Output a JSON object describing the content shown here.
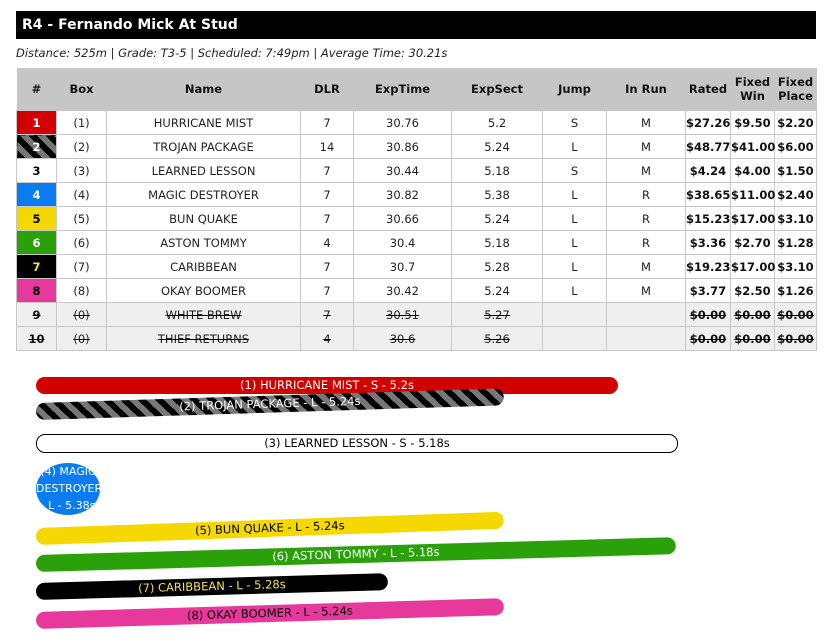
{
  "title": "R4 - Fernando Mick At Stud",
  "subtitle": "Distance: 525m | Grade: T3-5 | Scheduled: 7:49pm | Average Time: 30.21s",
  "headers": [
    "#",
    "Box",
    "Name",
    "DLR",
    "ExpTime",
    "ExpSect",
    "Jump",
    "In Run",
    "Rated",
    "Fixed Win",
    "Fixed Place"
  ],
  "runners": [
    {
      "num": "1",
      "box": "(1)",
      "name": "HURRICANE MIST",
      "dlr": "7",
      "exptime": "30.76",
      "expsect": "5.2",
      "jump": "S",
      "inrun": "M",
      "rated": "$27.26",
      "win": "$9.50",
      "place": "$2.20",
      "color": "#d20000",
      "text": "#fff",
      "bar": "(1) HURRICANE MIST - S - 5.2s"
    },
    {
      "num": "2",
      "box": "(2)",
      "name": "TROJAN PACKAGE",
      "dlr": "14",
      "exptime": "30.86",
      "expsect": "5.24",
      "jump": "L",
      "inrun": "M",
      "rated": "$48.77",
      "win": "$41.00",
      "place": "$6.00",
      "color": "stripes",
      "text": "#fff",
      "bar": "(2) TROJAN PACKAGE - L - 5.24s"
    },
    {
      "num": "3",
      "box": "(3)",
      "name": "LEARNED LESSON",
      "dlr": "7",
      "exptime": "30.44",
      "expsect": "5.18",
      "jump": "S",
      "inrun": "M",
      "rated": "$4.24",
      "win": "$4.00",
      "place": "$1.50",
      "color": "#ffffff",
      "text": "#000",
      "bar": "(3) LEARNED LESSON - S - 5.18s"
    },
    {
      "num": "4",
      "box": "(4)",
      "name": "MAGIC DESTROYER",
      "dlr": "7",
      "exptime": "30.82",
      "expsect": "5.38",
      "jump": "L",
      "inrun": "R",
      "rated": "$38.65",
      "win": "$11.00",
      "place": "$2.40",
      "color": "#0a7cf0",
      "text": "#fff",
      "bar": "(4) MAGIC DESTROYER - L - 5.38s"
    },
    {
      "num": "5",
      "box": "(5)",
      "name": "BUN QUAKE",
      "dlr": "7",
      "exptime": "30.66",
      "expsect": "5.24",
      "jump": "L",
      "inrun": "R",
      "rated": "$15.23",
      "win": "$17.00",
      "place": "$3.10",
      "color": "#f5d800",
      "text": "#000",
      "bar": "(5) BUN QUAKE - L - 5.24s"
    },
    {
      "num": "6",
      "box": "(6)",
      "name": "ASTON TOMMY",
      "dlr": "4",
      "exptime": "30.4",
      "expsect": "5.18",
      "jump": "L",
      "inrun": "R",
      "rated": "$3.36",
      "win": "$2.70",
      "place": "$1.28",
      "color": "#2aa00a",
      "text": "#fff",
      "bar": "(6) ASTON TOMMY - L - 5.18s"
    },
    {
      "num": "7",
      "box": "(7)",
      "name": "CARIBBEAN",
      "dlr": "7",
      "exptime": "30.7",
      "expsect": "5.28",
      "jump": "L",
      "inrun": "M",
      "rated": "$19.23",
      "win": "$17.00",
      "place": "$3.10",
      "color": "#000000",
      "text": "#f5e050",
      "bar": "(7) CARIBBEAN - L - 5.28s"
    },
    {
      "num": "8",
      "box": "(8)",
      "name": "OKAY BOOMER",
      "dlr": "7",
      "exptime": "30.42",
      "expsect": "5.24",
      "jump": "L",
      "inrun": "M",
      "rated": "$3.77",
      "win": "$2.50",
      "place": "$1.26",
      "color": "#e6399b",
      "text": "#000",
      "bar": "(8) OKAY BOOMER - L - 5.24s"
    },
    {
      "num": "9",
      "box": "(0)",
      "name": "WHITE BREW",
      "dlr": "7",
      "exptime": "30.51",
      "expsect": "5.27",
      "jump": "",
      "inrun": "",
      "rated": "$0.00",
      "win": "$0.00",
      "place": "$0.00",
      "scratched": true
    },
    {
      "num": "10",
      "box": "(0)",
      "name": "THIEF RETURNS",
      "dlr": "4",
      "exptime": "30.6",
      "expsect": "5.26",
      "jump": "",
      "inrun": "",
      "rated": "$0.00",
      "win": "$0.00",
      "place": "$0.00",
      "scratched": true
    }
  ]
}
